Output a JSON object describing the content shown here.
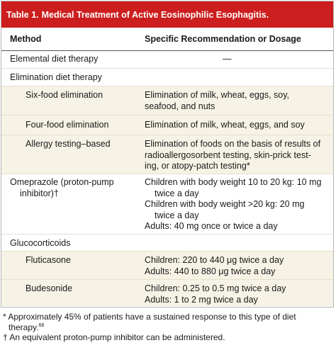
{
  "table": {
    "label": "Table 1.",
    "title": "Medical Treatment of Active Eosinophilic Esophagitis.",
    "columns": [
      "Method",
      "Specific Recommendation or Dosage"
    ],
    "rows": [
      {
        "method": "Elemental diet therapy",
        "rec": [
          "—"
        ]
      },
      {
        "method": "Elimination diet therapy",
        "rec": []
      },
      {
        "method": "Six-food elimination",
        "rec": [
          "Elimination of milk, wheat, eggs, soy,",
          "seafood, and nuts"
        ]
      },
      {
        "method": "Four-food elimination",
        "rec": [
          "Elimination of milk, wheat, eggs, and soy"
        ]
      },
      {
        "method": "Allergy testing–based",
        "rec": [
          "Elimination of foods on the basis of results of",
          "radioallergosorbent testing, skin-prick test-",
          "ing, or atopy-patch testing*"
        ]
      },
      {
        "method_lines": [
          "Omeprazole (proton-pump",
          "inhibitor)†"
        ],
        "rec_items": [
          [
            "Children with body weight 10 to 20 kg: 10 mg",
            "twice a day"
          ],
          [
            "Children with body weight >20 kg: 20 mg",
            "twice a day"
          ],
          [
            "Adults: 40 mg once or twice a day"
          ]
        ]
      },
      {
        "method": "Glucocorticoids",
        "rec": []
      },
      {
        "method": "Fluticasone",
        "rec": [
          "Children: 220 to 440 μg twice a day",
          "Adults: 440 to 880 μg twice a day"
        ]
      },
      {
        "method": "Budesonide",
        "rec": [
          "Children: 0.25 to 0.5 mg twice a day",
          "Adults: 1 to 2 mg twice a day"
        ]
      }
    ]
  },
  "footnotes": {
    "star": "* Approximately 45% of patients have a sustained response to this type of diet therapy.",
    "star_ref": "68",
    "dagger": "† An equivalent proton-pump inhibitor can be administered."
  }
}
